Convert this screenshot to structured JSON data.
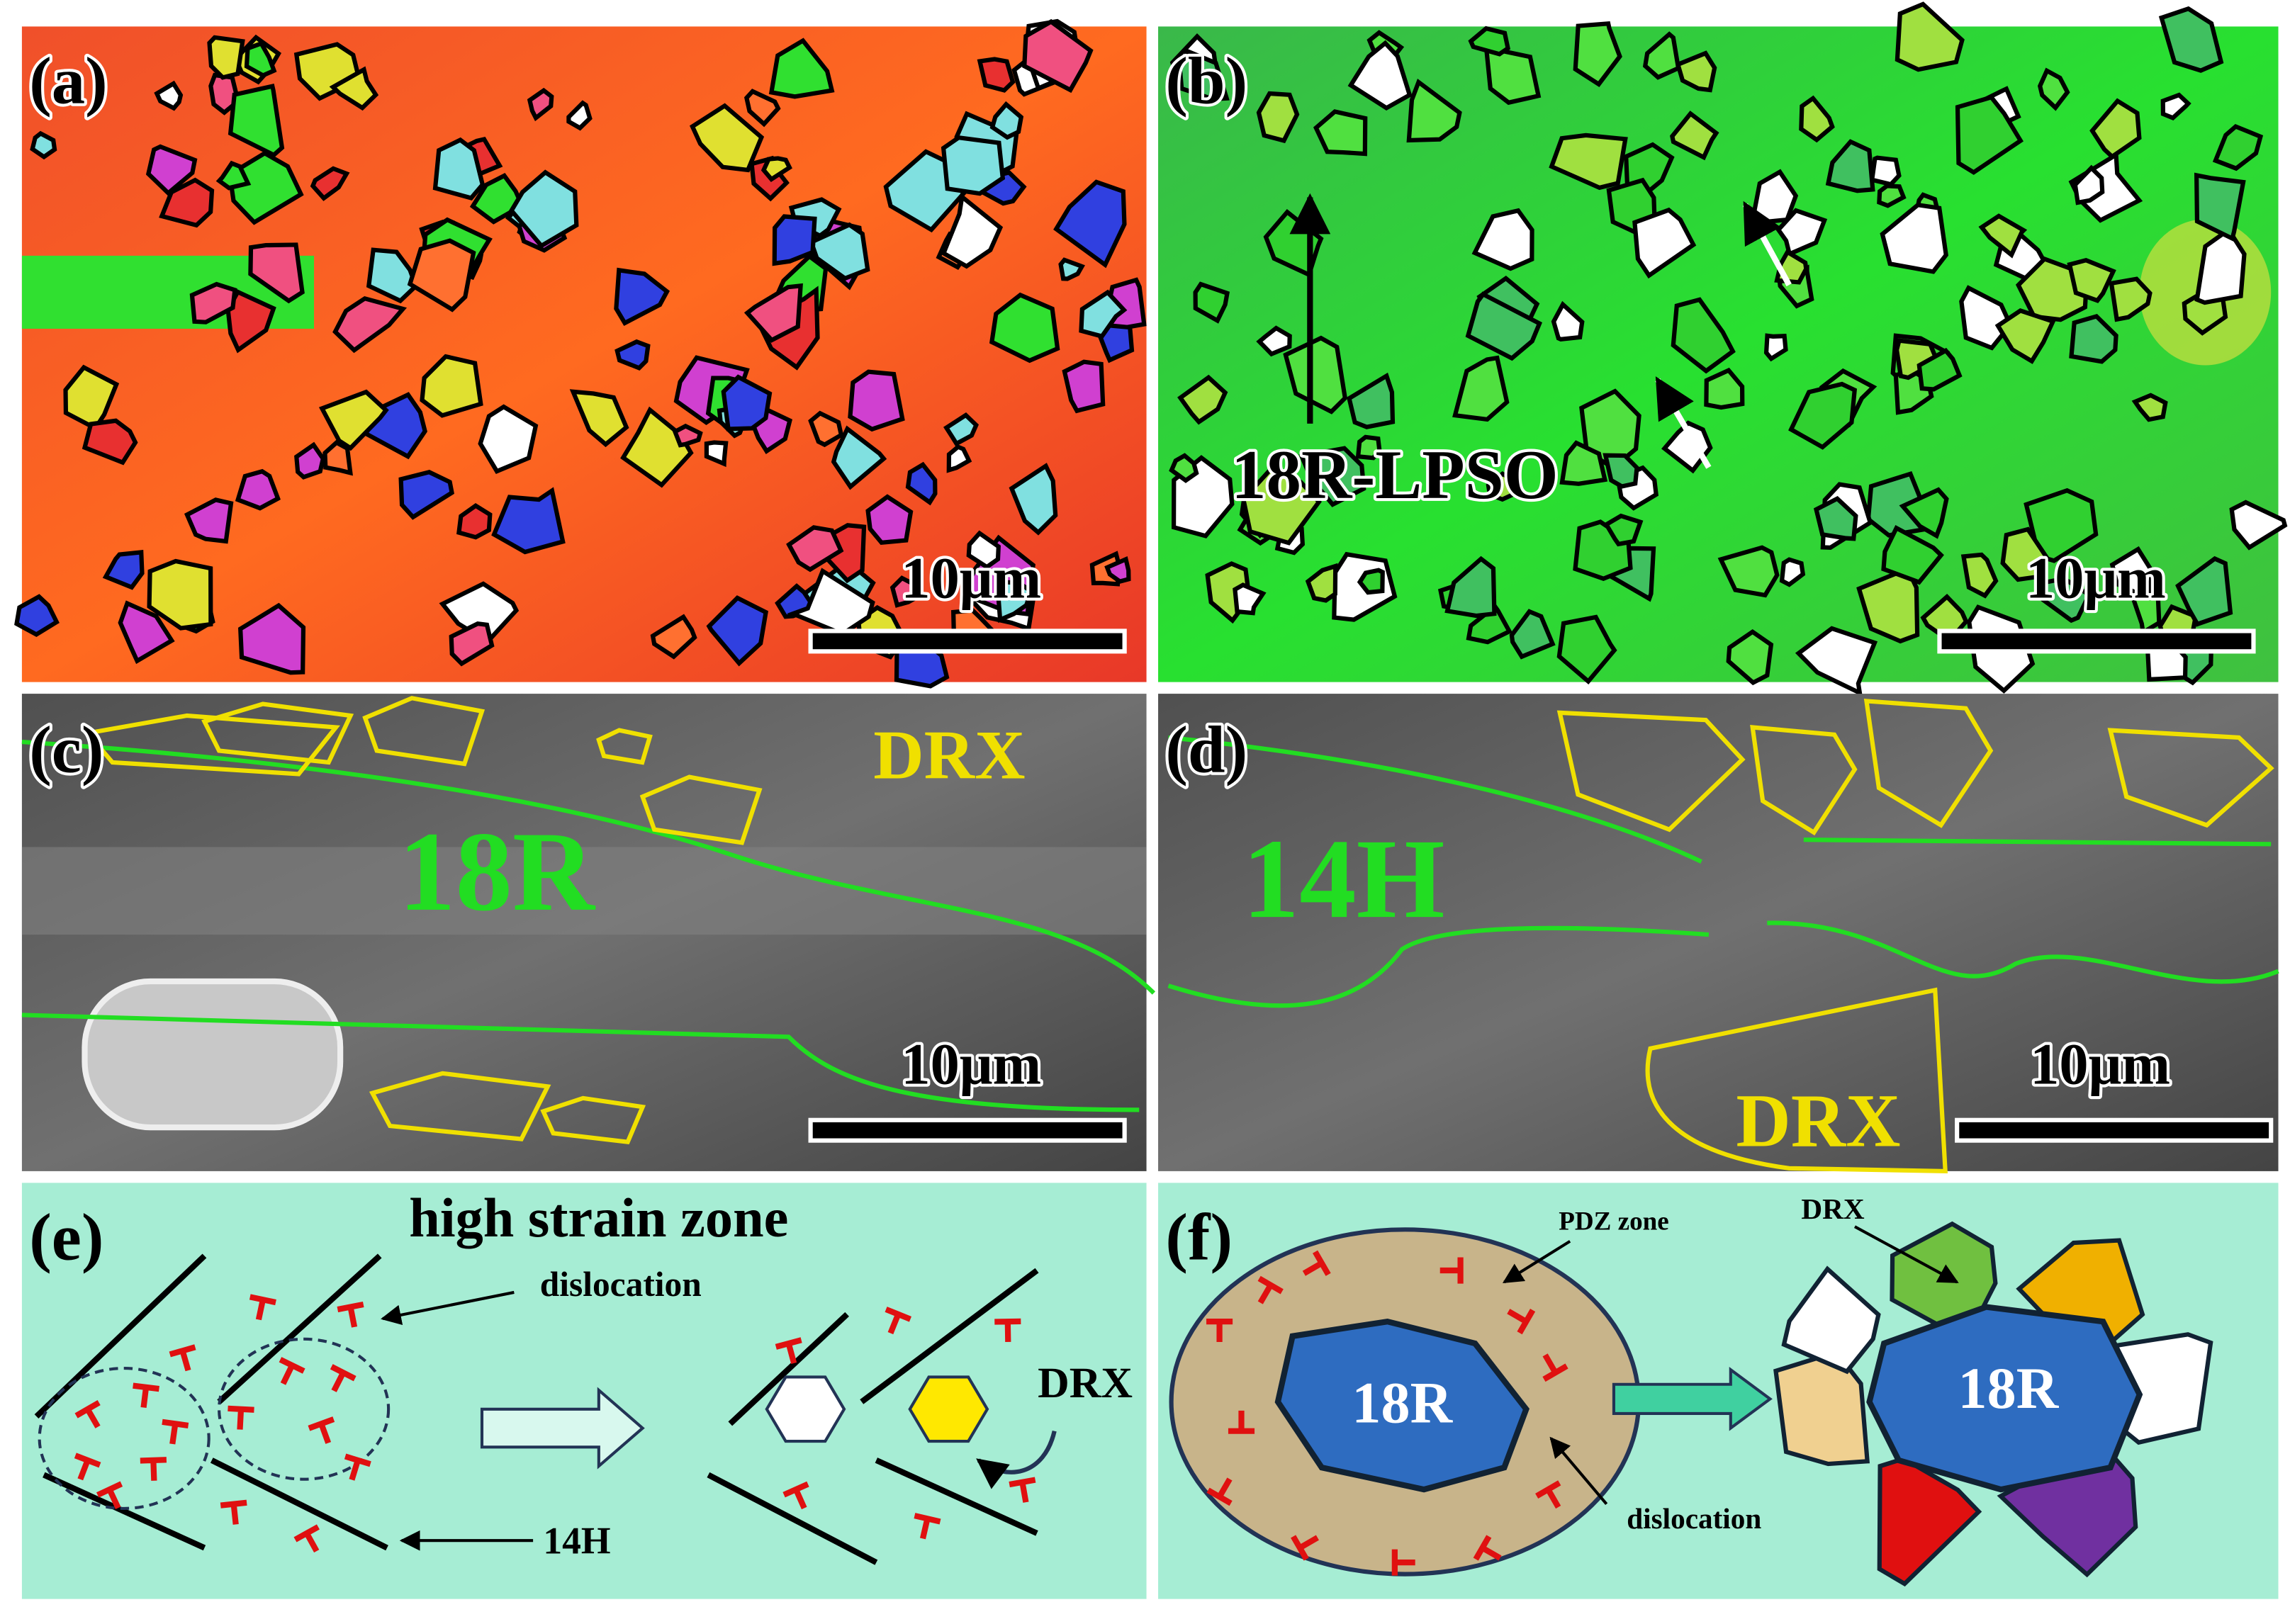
{
  "panels": [
    {
      "label": "(a)",
      "texts": [
        "10μm"
      ]
    },
    {
      "label": "(b)",
      "texts": [
        "18R-LPSO",
        "10μm"
      ]
    },
    {
      "label": "(c)",
      "texts": [
        "18R",
        "DRX",
        "10μm"
      ]
    },
    {
      "label": "(d)",
      "texts": [
        "14H",
        "DRX",
        "10μm"
      ]
    },
    {
      "label": "(e)",
      "texts": [
        "high strain zone",
        "dislocation",
        "14H",
        "DRX"
      ]
    },
    {
      "label": "(f)",
      "texts": [
        "PDZ zone",
        "DRX",
        "18R",
        "18R",
        "dislocation"
      ]
    }
  ]
}
